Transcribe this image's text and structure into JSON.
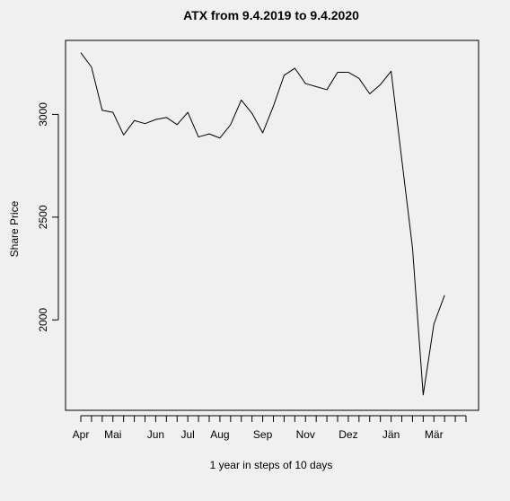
{
  "chart_data": {
    "type": "line",
    "title": "ATX from 9.4.2019 to 9.4.2020",
    "xlabel": "1 year in steps of 10 days",
    "ylabel": "Share Price",
    "ylim": [
      1560,
      3360
    ],
    "y_ticks": [
      2000,
      2500,
      3000
    ],
    "x_tick_count": 37,
    "month_labels": [
      {
        "label": "Apr",
        "index": 0
      },
      {
        "label": "Mai",
        "index": 3
      },
      {
        "label": "Jun",
        "index": 7
      },
      {
        "label": "Jul",
        "index": 10
      },
      {
        "label": "Aug",
        "index": 13
      },
      {
        "label": "Sep",
        "index": 17
      },
      {
        "label": "Nov",
        "index": 21
      },
      {
        "label": "Dez",
        "index": 25
      },
      {
        "label": "Jän",
        "index": 29
      },
      {
        "label": "Mär",
        "index": 33
      }
    ],
    "x": [
      0,
      1,
      2,
      3,
      4,
      5,
      6,
      7,
      8,
      9,
      10,
      11,
      12,
      13,
      14,
      15,
      16,
      17,
      18,
      19,
      20,
      21,
      22,
      23,
      24,
      25,
      26,
      27,
      28,
      29,
      30,
      31,
      32,
      33,
      34,
      35,
      36
    ],
    "series": [
      {
        "values": [
          3300,
          3230,
          3020,
          3010,
          2900,
          2970,
          2955,
          2975,
          2985,
          2950,
          3010,
          2890,
          2905,
          2885,
          2950,
          3070,
          3005,
          2910,
          3040,
          3190,
          3225,
          3150,
          3135,
          3120,
          3205,
          3205,
          3175,
          3100,
          3145,
          3210,
          2780,
          2350,
          1635,
          1980,
          2120,
          null,
          null
        ],
        "color": "#000000"
      }
    ],
    "grid": false,
    "legend": "none"
  }
}
